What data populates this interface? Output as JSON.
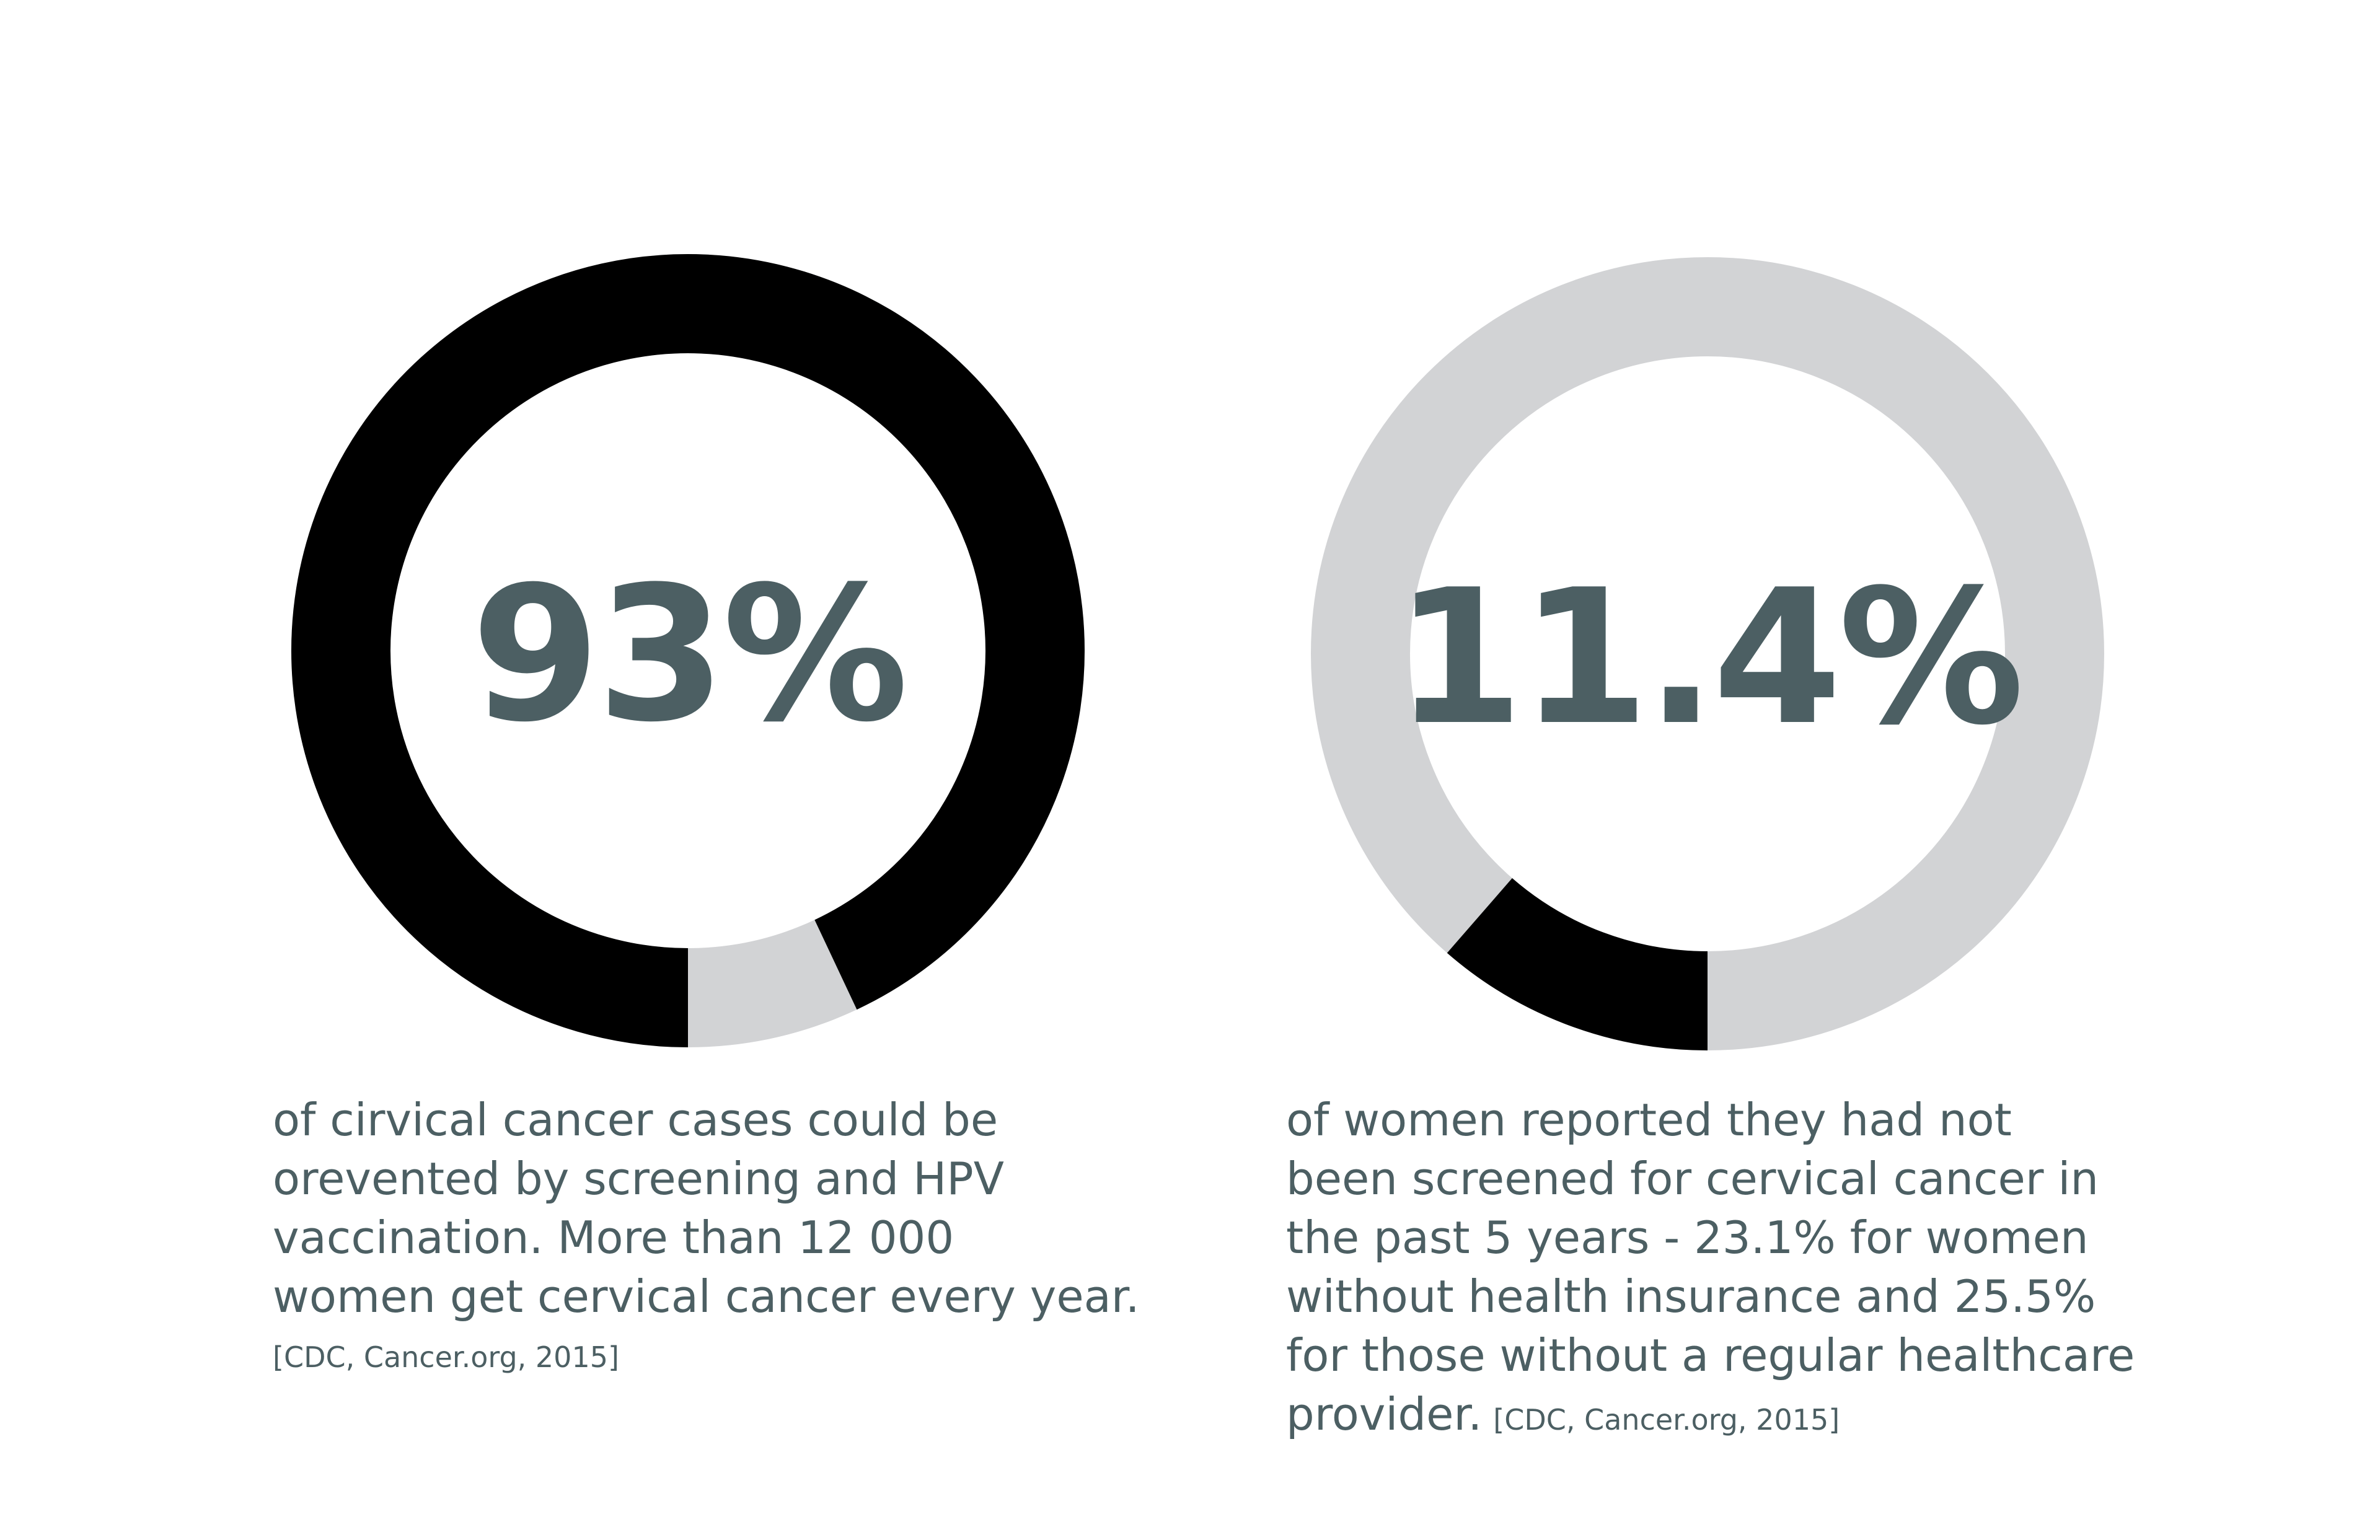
{
  "colors": {
    "filled": "#000000",
    "track": "#d2d3d5",
    "text": "#4c5f63"
  },
  "chart_data": [
    {
      "type": "pie",
      "style": "donut",
      "value": 93,
      "unit": "%",
      "label": "93%",
      "start": "bottom",
      "direction": "clockwise",
      "caption_lines": [
        "of cirvical cancer cases could be",
        "orevented by screening and HPV",
        "vaccination. More than 12 000",
        "women get cervical cancer every year."
      ],
      "source": "[CDC, Cancer.org, 2015]"
    },
    {
      "type": "pie",
      "style": "donut",
      "value": 11.4,
      "unit": "%",
      "label": "11.4%",
      "start": "bottom",
      "direction": "clockwise",
      "caption_lines": [
        "of women reported they had not",
        "been screened for cervical cancer in",
        "the past 5 years - 23.1% for women",
        "without health insurance and 25.5%",
        "for those without a regular healthcare",
        "provider."
      ],
      "source": "[CDC, Cancer.org, 2015]"
    }
  ]
}
